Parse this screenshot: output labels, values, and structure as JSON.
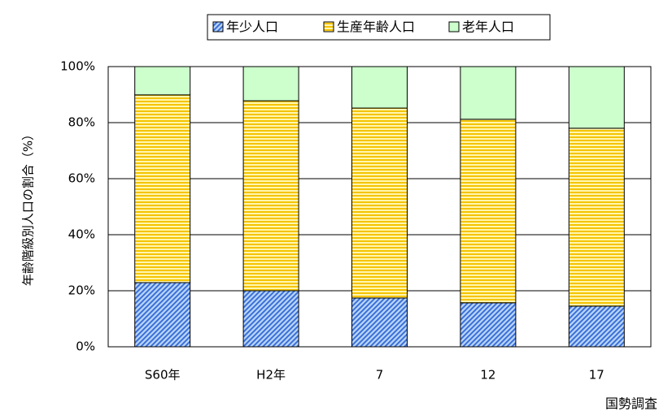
{
  "chart_data": {
    "type": "stacked_bar",
    "ylabel": "年齢階級別人口の割合（%）",
    "xlabel": "国勢調査",
    "categories": [
      "S60年",
      "H2年",
      "7",
      "12",
      "17"
    ],
    "series": [
      {
        "name": "年少人口",
        "color": "#3a6fd8",
        "values": [
          22.9,
          20.0,
          17.4,
          15.7,
          14.5
        ]
      },
      {
        "name": "生産年齢人口",
        "color": "#f5c400",
        "values": [
          67.0,
          67.8,
          67.8,
          65.5,
          63.5
        ]
      },
      {
        "name": "老年人口",
        "color": "#ccffcc",
        "values": [
          10.1,
          12.2,
          14.8,
          18.8,
          22.0
        ]
      }
    ],
    "ylim": [
      0,
      100
    ],
    "yticks": [
      {
        "value": 0,
        "label": "0%"
      },
      {
        "value": 20,
        "label": "20%"
      },
      {
        "value": 40,
        "label": "40%"
      },
      {
        "value": 60,
        "label": "60%"
      },
      {
        "value": 80,
        "label": "80%"
      },
      {
        "value": 100,
        "label": "100%"
      }
    ],
    "grid": true
  }
}
